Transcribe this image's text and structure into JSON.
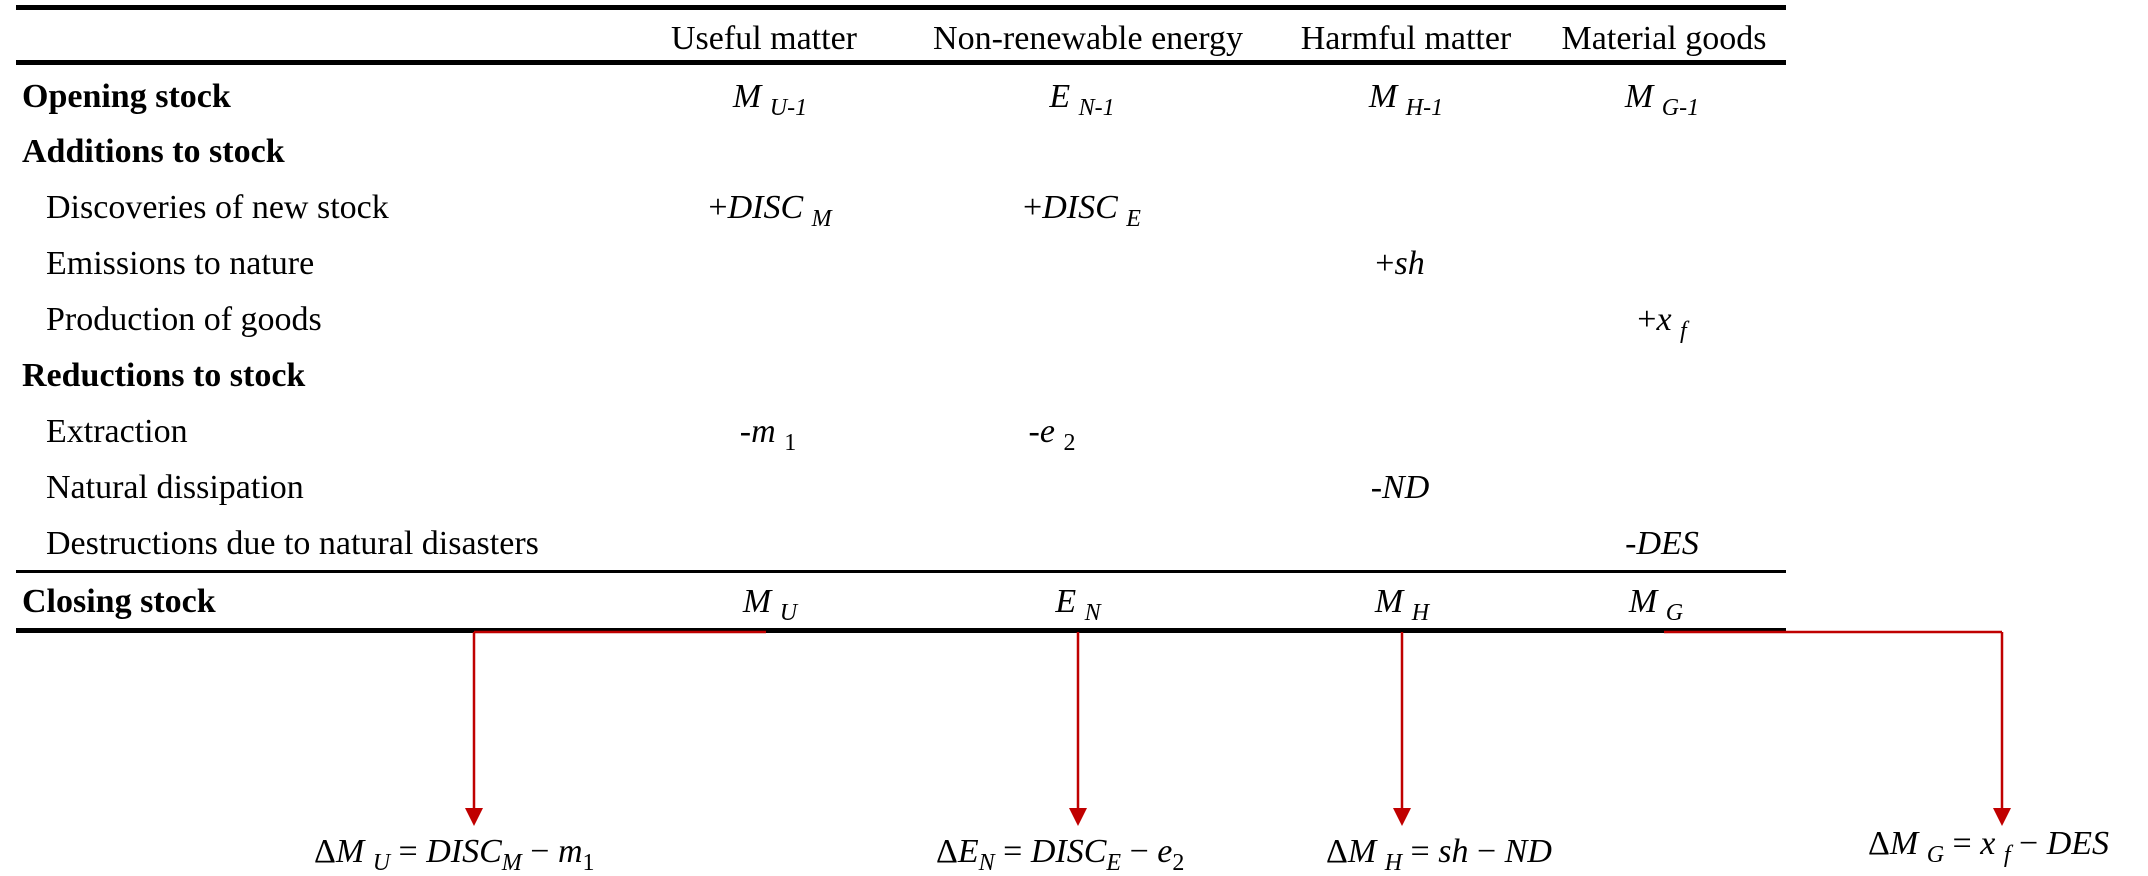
{
  "table": {
    "columns": [
      "Useful matter",
      "Non-renewable energy",
      "Harmful matter",
      "Material goods"
    ],
    "rows": {
      "opening": {
        "label": "Opening stock",
        "useful": {
          "base": "M",
          "sub": "U-1"
        },
        "energy": {
          "base": "E",
          "sub": "N-1"
        },
        "harmful": {
          "base": "M",
          "sub": "H-1"
        },
        "goods": {
          "base": "M",
          "sub": "G-1"
        }
      },
      "additions": {
        "label": "Additions to stock"
      },
      "discoveries": {
        "label": "Discoveries of new stock",
        "useful": {
          "sign": "+",
          "base": "DISC",
          "sub": "M"
        },
        "energy": {
          "sign": "+",
          "base": "DISC",
          "sub": "E"
        }
      },
      "emissions": {
        "label": "Emissions to nature",
        "harmful": {
          "sign": "+",
          "base": "sh"
        }
      },
      "production": {
        "label": "Production of goods",
        "goods": {
          "sign": "+",
          "base": "x",
          "sub": "f"
        }
      },
      "reductions": {
        "label": "Reductions to stock"
      },
      "extraction": {
        "label": "Extraction",
        "useful": {
          "sign": "-",
          "base": "m",
          "sub": "1"
        },
        "energy": {
          "sign": "-",
          "base": "e",
          "sub": "2"
        }
      },
      "dissipation": {
        "label": "Natural dissipation",
        "harmful": {
          "sign": "-",
          "base": "ND"
        }
      },
      "destructions": {
        "label": "Destructions due to natural disasters",
        "goods": {
          "sign": "-",
          "base": "DES"
        }
      },
      "closing": {
        "label": "Closing stock",
        "useful": {
          "base": "M",
          "sub": "U"
        },
        "energy": {
          "base": "E",
          "sub": "N"
        },
        "harmful": {
          "base": "M",
          "sub": "H"
        },
        "goods": {
          "base": "M",
          "sub": "G"
        }
      }
    }
  },
  "equations": {
    "useful": {
      "delta": "Δ",
      "lhs": "M",
      "lhs_sub": "U",
      "eq": " = ",
      "term1": "DISC",
      "term1_sub": "M",
      "op": " − ",
      "term2": "m",
      "term2_sub": "1"
    },
    "energy": {
      "delta": "Δ",
      "lhs": "E",
      "lhs_sub": "N",
      "eq": " = ",
      "term1": "DISC",
      "term1_sub": "E",
      "op": " − ",
      "term2": "e",
      "term2_sub": "2"
    },
    "harmful": {
      "delta": "Δ",
      "lhs": "M",
      "lhs_sub": "H",
      "eq": " = ",
      "term1": "sh",
      "op": " − ",
      "term2": "ND"
    },
    "goods": {
      "delta": "Δ",
      "lhs": "M",
      "lhs_sub": "G",
      "eq": " = ",
      "term1": "x",
      "term1_sub": "f",
      "op": " − ",
      "term2": "DES"
    }
  },
  "colors": {
    "arrow": "#c00000",
    "text": "#000000"
  }
}
